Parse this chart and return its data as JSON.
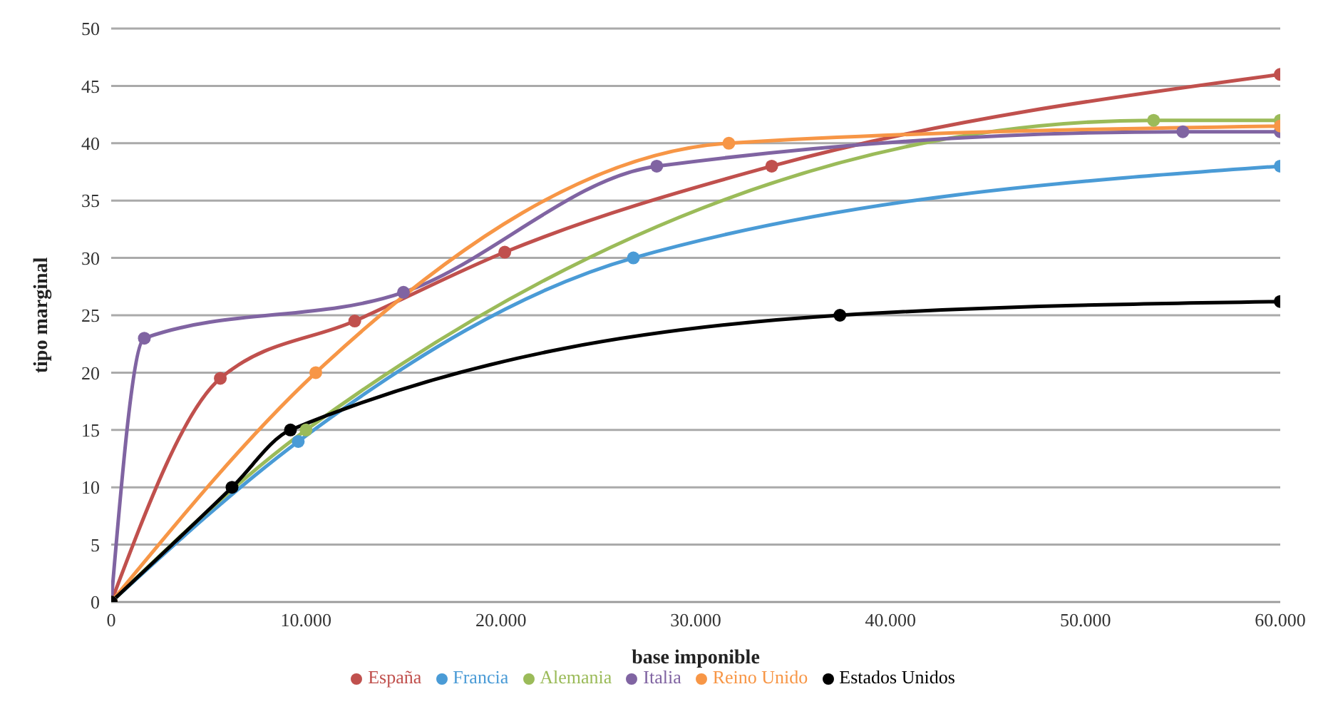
{
  "chart_data": {
    "type": "line",
    "xlabel": "base imponible",
    "ylabel": "tipo marginal",
    "xlim": [
      0,
      60000
    ],
    "xticks": [
      0,
      {
        "value": 10000,
        "label": "10.000"
      },
      {
        "value": 20000,
        "label": "20.000"
      },
      {
        "value": 30000,
        "label": "30.000"
      },
      {
        "value": 40000,
        "label": "40.000"
      },
      {
        "value": 50000,
        "label": "50.000"
      },
      {
        "value": 60000,
        "label": "60.000"
      }
    ],
    "ylim": [
      0,
      50
    ],
    "yticks": [
      0,
      5,
      10,
      15,
      20,
      25,
      30,
      35,
      40,
      45,
      50
    ],
    "grid": "y",
    "legend": "bottom",
    "marker": "circle",
    "line_style": "solid",
    "series": [
      {
        "name": "España",
        "color": "#c0504d",
        "x": [
          0,
          5600,
          12500,
          20200,
          33900,
          60000
        ],
        "values": [
          0,
          19.5,
          24.5,
          30.5,
          38,
          46
        ]
      },
      {
        "name": "Francia",
        "color": "#4a9bd6",
        "x": [
          0,
          9600,
          26800,
          60000
        ],
        "values": [
          0,
          14,
          30,
          38
        ]
      },
      {
        "name": "Alemania",
        "color": "#9bbb59",
        "x": [
          0,
          10000,
          53500,
          60000
        ],
        "values": [
          0,
          15,
          42,
          42
        ]
      },
      {
        "name": "Italia",
        "color": "#8064a2",
        "x": [
          0,
          1700,
          15000,
          28000,
          55000,
          60000
        ],
        "values": [
          0,
          23,
          27,
          38,
          41,
          41
        ]
      },
      {
        "name": "Reino Unido",
        "color": "#f79646",
        "x": [
          0,
          10500,
          31700,
          60000
        ],
        "values": [
          0,
          20,
          40,
          41.5
        ]
      },
      {
        "name": "Estados Unidos",
        "color": "#000000",
        "x": [
          0,
          6200,
          9200,
          37400,
          60000
        ],
        "values": [
          0,
          10,
          15,
          25,
          26.2
        ]
      }
    ]
  }
}
